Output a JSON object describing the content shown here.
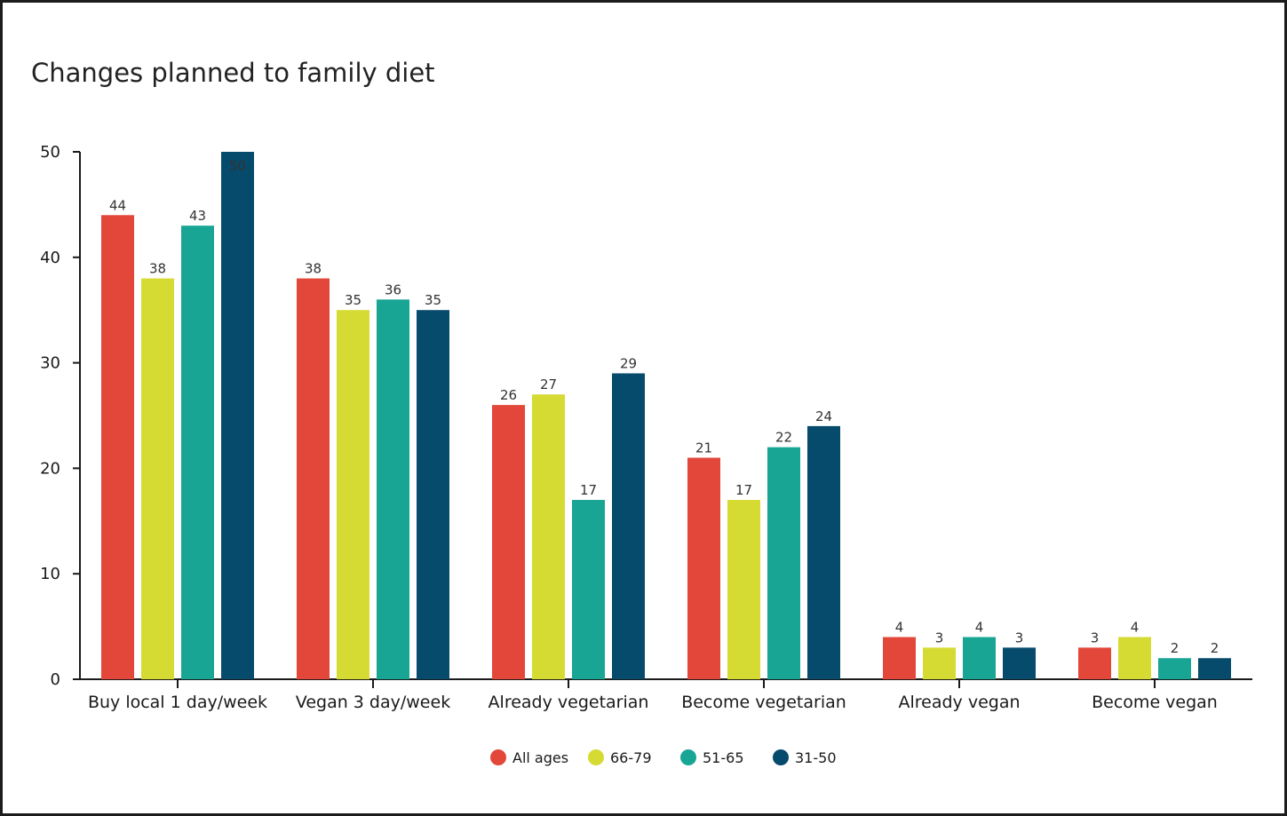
{
  "chart_data": {
    "type": "bar",
    "title": "Changes planned to family diet",
    "xlabel": "",
    "ylabel": "",
    "ylim": [
      0,
      50
    ],
    "yticks": [
      0,
      10,
      20,
      30,
      40,
      50
    ],
    "categories": [
      "Buy local 1 day/week",
      "Vegan 3 day/week",
      "Already vegetarian",
      "Become vegetarian",
      "Already vegan",
      "Become vegan"
    ],
    "series": [
      {
        "name": "All ages",
        "color": "#e2473a",
        "values": [
          44,
          38,
          26,
          21,
          4,
          3
        ]
      },
      {
        "name": "66-79",
        "color": "#d6db33",
        "values": [
          38,
          35,
          27,
          17,
          3,
          4
        ]
      },
      {
        "name": "51-65",
        "color": "#18a594",
        "values": [
          43,
          36,
          17,
          22,
          4,
          2
        ]
      },
      {
        "name": "31-50",
        "color": "#064b6b",
        "values": [
          50,
          35,
          29,
          24,
          3,
          2
        ]
      }
    ],
    "grid": false,
    "legend_position": "bottom-center",
    "data_labels": true
  }
}
